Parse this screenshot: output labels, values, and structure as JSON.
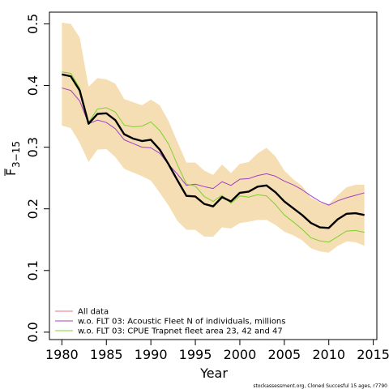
{
  "chart_data": {
    "type": "line",
    "xlabel": "Year",
    "ylabel_main": "F",
    "ylabel_sub": "3−15",
    "xlim": [
      1980,
      2015
    ],
    "ylim": [
      0,
      0.5
    ],
    "x_ticks": [
      1980,
      1985,
      1990,
      1995,
      2000,
      2005,
      2010,
      2015
    ],
    "y_ticks": [
      "0.0",
      "0.1",
      "0.2",
      "0.3",
      "0.4",
      "0.5"
    ],
    "years": [
      1980,
      1981,
      1982,
      1983,
      1984,
      1985,
      1986,
      1987,
      1988,
      1989,
      1990,
      1991,
      1992,
      1993,
      1994,
      1995,
      1996,
      1997,
      1998,
      1999,
      2000,
      2001,
      2002,
      2003,
      2004,
      2005,
      2006,
      2007,
      2008,
      2009,
      2010,
      2011,
      2012,
      2013,
      2014
    ],
    "band": {
      "color": "#f5deb3",
      "upper": [
        0.502,
        0.5,
        0.478,
        0.398,
        0.412,
        0.41,
        0.403,
        0.378,
        0.373,
        0.368,
        0.377,
        0.368,
        0.342,
        0.308,
        0.275,
        0.275,
        0.262,
        0.255,
        0.272,
        0.258,
        0.273,
        0.276,
        0.29,
        0.299,
        0.285,
        0.262,
        0.248,
        0.237,
        0.218,
        0.21,
        0.208,
        0.222,
        0.235,
        0.239,
        0.239
      ],
      "lower": [
        0.335,
        0.331,
        0.307,
        0.276,
        0.296,
        0.297,
        0.284,
        0.265,
        0.259,
        0.253,
        0.246,
        0.226,
        0.205,
        0.18,
        0.166,
        0.166,
        0.155,
        0.155,
        0.17,
        0.168,
        0.177,
        0.179,
        0.182,
        0.182,
        0.174,
        0.163,
        0.157,
        0.149,
        0.136,
        0.131,
        0.129,
        0.14,
        0.147,
        0.146,
        0.14
      ]
    },
    "series": [
      {
        "name": "All data",
        "color": "#000000",
        "width": 2.4,
        "legend_color": "#e8708a",
        "values": [
          0.418,
          0.415,
          0.392,
          0.338,
          0.354,
          0.355,
          0.344,
          0.321,
          0.314,
          0.31,
          0.312,
          0.296,
          0.272,
          0.246,
          0.221,
          0.22,
          0.208,
          0.204,
          0.219,
          0.212,
          0.226,
          0.228,
          0.236,
          0.238,
          0.227,
          0.212,
          0.201,
          0.19,
          0.177,
          0.17,
          0.169,
          0.183,
          0.192,
          0.193,
          0.19
        ]
      },
      {
        "name": "w.o. FLT 03: Acoustic Fleet   N of individuals, millions",
        "color": "#a040c0",
        "width": 1,
        "legend_color": "#a040c0",
        "values": [
          0.396,
          0.392,
          0.375,
          0.338,
          0.344,
          0.34,
          0.33,
          0.312,
          0.306,
          0.3,
          0.299,
          0.29,
          0.272,
          0.256,
          0.238,
          0.24,
          0.236,
          0.233,
          0.244,
          0.238,
          0.248,
          0.249,
          0.254,
          0.257,
          0.253,
          0.245,
          0.239,
          0.231,
          0.221,
          0.212,
          0.206,
          0.213,
          0.218,
          0.222,
          0.226
        ]
      },
      {
        "name": "w.o. FLT 03: CPUE Trapnet fleet area 23, 42 and 47",
        "color": "#80d030",
        "width": 1,
        "legend_color": "#80d030",
        "values": [
          0.422,
          0.42,
          0.396,
          0.34,
          0.362,
          0.364,
          0.357,
          0.336,
          0.333,
          0.334,
          0.341,
          0.327,
          0.305,
          0.271,
          0.24,
          0.237,
          0.22,
          0.212,
          0.222,
          0.209,
          0.221,
          0.219,
          0.223,
          0.221,
          0.207,
          0.19,
          0.179,
          0.167,
          0.153,
          0.148,
          0.146,
          0.155,
          0.164,
          0.165,
          0.162
        ]
      }
    ],
    "legend_location": "bottom-left",
    "legend_items": [
      {
        "label": "All data",
        "color": "#e8708a"
      },
      {
        "label": "w.o. FLT 03: Acoustic Fleet   N of individuals, millions",
        "color": "#a040c0"
      },
      {
        "label": "w.o. FLT 03: CPUE Trapnet fleet area 23, 42 and 47",
        "color": "#80d030"
      }
    ]
  },
  "footer": "stockassessment.org, Cloned Succesful 15 ages, r7790"
}
